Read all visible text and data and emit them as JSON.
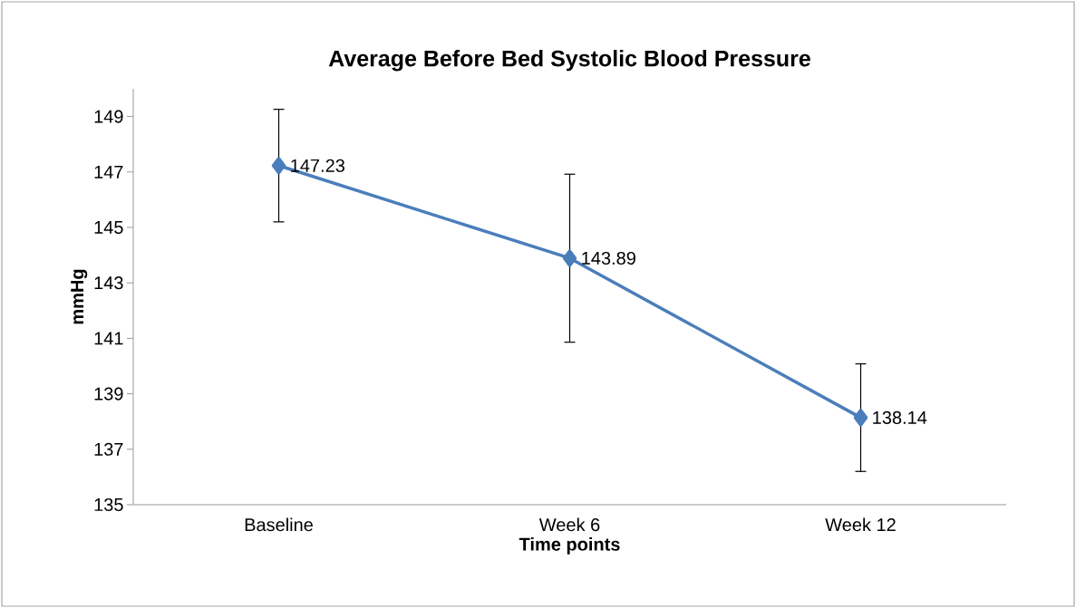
{
  "chart_data": {
    "type": "line",
    "title": "Average Before Bed Systolic Blood Pressure",
    "xlabel": "Time points",
    "ylabel": "mmHg",
    "categories": [
      "Baseline",
      "Week 6",
      "Week 12"
    ],
    "series": [
      {
        "color": "#4a7ebb",
        "values": [
          147.23,
          143.89,
          138.14
        ],
        "errors": [
          2.03,
          3.03,
          1.94
        ],
        "value_labels": [
          "147.23",
          "143.89",
          "138.14"
        ]
      }
    ],
    "ylim": [
      135,
      150
    ],
    "yticks": [
      135,
      137,
      139,
      141,
      143,
      145,
      147,
      149
    ],
    "marker": "diamond",
    "line_style": "solid",
    "grid": false
  }
}
